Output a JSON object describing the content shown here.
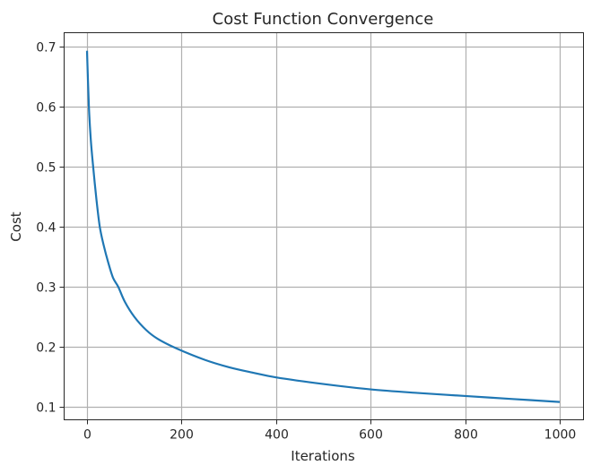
{
  "chart_data": {
    "type": "line",
    "title": "Cost Function Convergence",
    "xlabel": "Iterations",
    "ylabel": "Cost",
    "xlim": [
      -50,
      1050
    ],
    "ylim": [
      0.082,
      0.728
    ],
    "xticks": [
      0,
      200,
      400,
      600,
      800,
      1000
    ],
    "xtick_labels": [
      "0",
      "200",
      "400",
      "600",
      "800",
      "1000"
    ],
    "yticks": [
      0.1,
      0.2,
      0.3,
      0.4,
      0.5,
      0.6,
      0.7
    ],
    "ytick_labels": [
      "0.1",
      "0.2",
      "0.3",
      "0.4",
      "0.5",
      "0.6",
      "0.7"
    ],
    "grid": true,
    "legend": null,
    "series": [
      {
        "name": "Cost",
        "color": "#1f77b4",
        "x": [
          0,
          4,
          8,
          13,
          20,
          27,
          35,
          45,
          55,
          66,
          80,
          100,
          125,
          150,
          190,
          250,
          300,
          350,
          400,
          500,
          600,
          700,
          800,
          900,
          1000
        ],
        "y": [
          0.693,
          0.6,
          0.545,
          0.5,
          0.445,
          0.4,
          0.37,
          0.34,
          0.315,
          0.3,
          0.275,
          0.25,
          0.228,
          0.213,
          0.197,
          0.178,
          0.166,
          0.157,
          0.149,
          0.138,
          0.129,
          0.123,
          0.118,
          0.113,
          0.108
        ]
      }
    ]
  },
  "colors": {
    "background": "#ffffff",
    "grid": "#b0b0b0",
    "axes": "#262626",
    "line": "#1f77b4"
  }
}
